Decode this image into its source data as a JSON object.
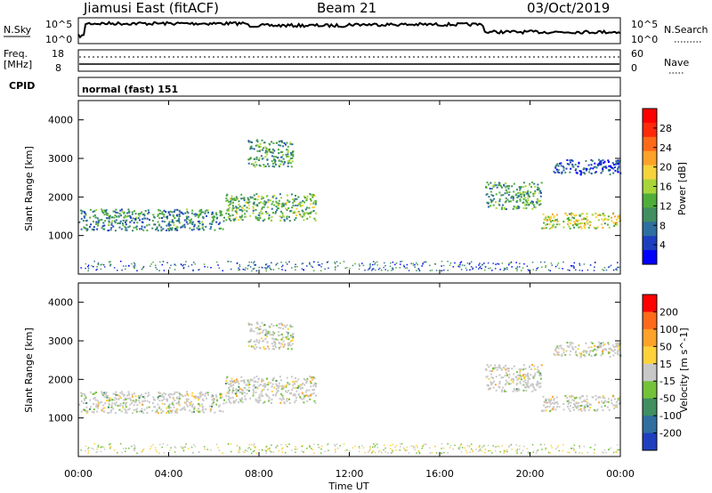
{
  "header": {
    "station": "Jiamusi East (fitACF)",
    "beam": "Beam 21",
    "date": "03/Oct/2019"
  },
  "nsky_panel": {
    "left_label": "N.Sky",
    "top_tick": "10^5",
    "bottom_tick": "10^0",
    "right_label": "N.Search",
    "right_top_tick": "10^5",
    "right_bottom_tick": "10^0"
  },
  "freq_panel": {
    "left_label_1": "Freq.",
    "left_label_2": "[MHz]",
    "left_top_tick": "18",
    "left_bottom_tick": "8",
    "right_top_tick": "60",
    "right_bottom_tick": "0",
    "right_label": "Nave"
  },
  "cpid": {
    "label": "CPID",
    "mode": "normal (fast) 151"
  },
  "x_axis": {
    "ticks": [
      "00:00",
      "04:00",
      "08:00",
      "12:00",
      "16:00",
      "20:00",
      "00:00"
    ],
    "label": "Time UT"
  },
  "power_panel": {
    "ylabel": "Slant Range [km]",
    "yticks": [
      "4000",
      "3000",
      "2000",
      "1000"
    ],
    "colorbar_label": "Power [dB]",
    "colorbar_ticks": [
      "28",
      "24",
      "20",
      "16",
      "12",
      "8",
      "4"
    ],
    "colors": [
      "#0000ff",
      "#1d3fbf",
      "#2e6fa0",
      "#3f8f60",
      "#4fae3a",
      "#a8d63a",
      "#f7d33c",
      "#ffa22a",
      "#ff6a1a",
      "#ff2a0a",
      "#ff0000"
    ]
  },
  "velocity_panel": {
    "ylabel": "Slant Range [km]",
    "yticks": [
      "4000",
      "3000",
      "2000",
      "1000"
    ],
    "colorbar_label": "Velocity [m s^-1]",
    "colorbar_ticks": [
      "200",
      "100",
      "50",
      "15",
      "-15",
      "-50",
      "-100",
      "-200"
    ],
    "colors": [
      "#1f3fbf",
      "#2e6fa0",
      "#3f8f60",
      "#74c23a",
      "#c8c8c8",
      "#ffd23c",
      "#ffa22a",
      "#ff6a1a",
      "#ff0000"
    ]
  },
  "chart_data": {
    "type": "heatmap",
    "x_range_hours": [
      0,
      24
    ],
    "y_range_km": [
      0,
      4500
    ],
    "power_echo_bands": [
      {
        "t_start": 0.0,
        "t_end": 6.5,
        "range_start_km": 1150,
        "range_end_km": 1700,
        "power_db": 8
      },
      {
        "t_start": 6.5,
        "t_end": 10.5,
        "range_start_km": 1400,
        "range_end_km": 2100,
        "power_db": 12
      },
      {
        "t_start": 7.5,
        "t_end": 9.5,
        "range_start_km": 2800,
        "range_end_km": 3500,
        "power_db": 10
      },
      {
        "t_start": 18.0,
        "t_end": 20.5,
        "range_start_km": 1700,
        "range_end_km": 2400,
        "power_db": 10
      },
      {
        "t_start": 20.5,
        "t_end": 24.0,
        "range_start_km": 1200,
        "range_end_km": 1600,
        "power_db": 16
      },
      {
        "t_start": 21.0,
        "t_end": 24.0,
        "range_start_km": 2600,
        "range_end_km": 3000,
        "power_db": 4
      }
    ],
    "velocity_typical_ms": [
      -15,
      15
    ]
  }
}
